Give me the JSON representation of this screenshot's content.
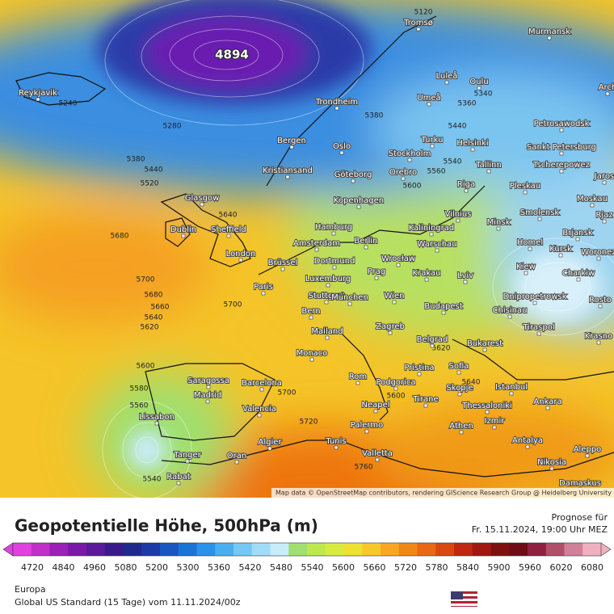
{
  "map": {
    "low_label": "4894",
    "attribution": "Map data © OpenStreetMap contributors, rendering GIScience Research Group @ Heidelberg University",
    "cities": [
      "Reykjavik",
      "Tromsø",
      "Murmansk",
      "Luleå",
      "Oulu",
      "Umeå",
      "Trondheim",
      "Arch",
      "Petrosawodsk",
      "Bergen",
      "Turku",
      "Helsinki",
      "Sankt Petersburg",
      "Oslo",
      "Stockholm",
      "Tscherepowez",
      "Tallinn",
      "Kristiansand",
      "Göteborg",
      "Orebro",
      "Jaros",
      "Riga",
      "Pleskau",
      "Glasgow",
      "Kopenhagen",
      "Moskau",
      "Vilnius",
      "Smolensk",
      "Rjaz",
      "Dublin",
      "Sheffield",
      "Hamburg",
      "Kaliningrad",
      "Minsk",
      "Brjansk",
      "Amsterdam",
      "Berlin",
      "Warschau",
      "Homel",
      "Kursk",
      "Woronez",
      "London",
      "Brüssel",
      "Dortmund",
      "Wrocław",
      "Krakau",
      "Kiew",
      "Charkiw",
      "Prag",
      "Lviv",
      "Luxemburg",
      "Paris",
      "Stuttgart",
      "München",
      "Wien",
      "Dnipropetrowsk",
      "Rosto",
      "Budapest",
      "Chisinau",
      "Bern",
      "Zagreb",
      "Tiraspol",
      "Mailand",
      "Belgrad",
      "Bukarest",
      "Krasno",
      "Monaco",
      "Pristina",
      "Sofia",
      "Rom",
      "Podgorica",
      "Saragossa",
      "Barcelona",
      "Skopje",
      "Istanbul",
      "Madrid",
      "Tirane",
      "Neapel",
      "Ankara",
      "Thessaloniki",
      "Valencia",
      "Lissabon",
      "Izmir",
      "Palermo",
      "Athen",
      "Algier",
      "Tunis",
      "Antalya",
      "Aleppo",
      "Tanger",
      "Oran",
      "Valletta",
      "Nikosia",
      "Rabat",
      "Damaskus"
    ],
    "contour_labels": [
      "5240",
      "5280",
      "5380",
      "5440",
      "5520",
      "5680",
      "5700",
      "5680",
      "5660",
      "5640",
      "5620",
      "5600",
      "5580",
      "5560",
      "5540",
      "5700",
      "5720",
      "5760",
      "5380",
      "5440",
      "5560",
      "5600",
      "5640",
      "5700",
      "5620",
      "5640",
      "5600",
      "5540",
      "5120",
      "5340",
      "5360"
    ]
  },
  "header": {
    "title": "Geopotentielle Höhe, 500hPa (m)",
    "forecast_label": "Prognose für",
    "forecast_time": "Fr. 15.11.2024, 19:00 Uhr MEZ"
  },
  "colorbar": {
    "colors": [
      "#e040e0",
      "#c030c8",
      "#9a20b8",
      "#7a18a8",
      "#5a1a9a",
      "#3a1a8a",
      "#1e2a8c",
      "#1a3aa8",
      "#1a56c0",
      "#1a74d8",
      "#2a92e8",
      "#48aef0",
      "#74c8f4",
      "#a0dcf8",
      "#c8ecfa",
      "#a0e070",
      "#bce850",
      "#d8ec40",
      "#f0e030",
      "#f8c828",
      "#f8a820",
      "#f08818",
      "#e86814",
      "#d84810",
      "#c02810",
      "#a01810",
      "#801010",
      "#700c18",
      "#902040",
      "#b05068",
      "#d08098",
      "#f0b0c0"
    ],
    "ticks": [
      "4720",
      "4840",
      "4960",
      "5080",
      "5200",
      "5300",
      "5360",
      "5420",
      "5480",
      "5540",
      "5600",
      "5660",
      "5720",
      "5780",
      "5840",
      "5900",
      "5960",
      "6020",
      "6080"
    ]
  },
  "footer": {
    "region": "Europa",
    "model": "Global US Standard (15 Tage) vom  11.11.2024/00z"
  }
}
